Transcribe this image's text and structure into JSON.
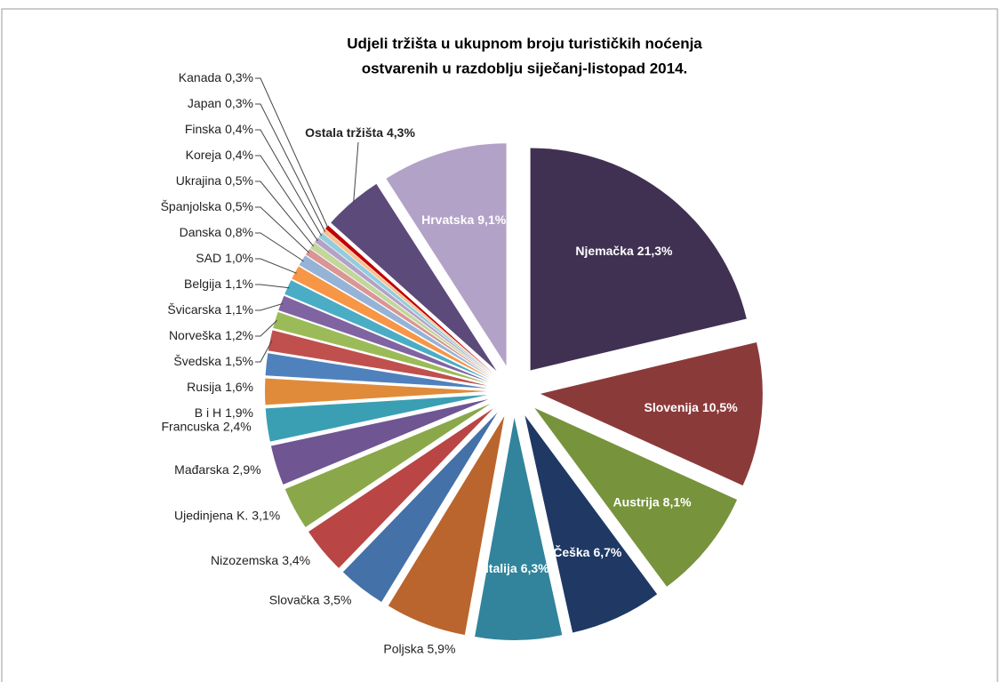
{
  "chart_data": {
    "type": "pie",
    "title": [
      "Udjeli tržišta u ukupnom broju turističkih noćenja",
      "ostvarenih u razdoblju siječanj-listopad 2014."
    ],
    "categories": [
      "Njemačka",
      "Slovenija",
      "Austrija",
      "Češka",
      "Italija",
      "Poljska",
      "Slovačka",
      "Nizozemska",
      "Ujedinjena K.",
      "Mađarska",
      "Francuska",
      "B i H",
      "Rusija",
      "Švedska",
      "Norveška",
      "Švicarska",
      "Belgija",
      "SAD",
      "Danska",
      "Španjolska",
      "Ukrajina",
      "Koreja",
      "Finska",
      "Japan",
      "Kanada",
      "Ostala tržišta",
      "Hrvatska"
    ],
    "values": [
      21.3,
      10.5,
      8.1,
      6.7,
      6.3,
      5.9,
      3.5,
      3.4,
      3.1,
      2.9,
      2.4,
      1.9,
      1.6,
      1.5,
      1.2,
      1.1,
      1.1,
      1.0,
      0.8,
      0.5,
      0.5,
      0.4,
      0.4,
      0.3,
      0.3,
      4.3,
      9.1
    ],
    "value_labels": [
      "21,3%",
      "10,5%",
      "8,1%",
      "6,7%",
      "6,3%",
      "5,9%",
      "3,5%",
      "3,4%",
      "3,1%",
      "2,9%",
      "2,4%",
      "1,9%",
      "1,6%",
      "1,5%",
      "1,2%",
      "1,1%",
      "1,1%",
      "1,0%",
      "0,8%",
      "0,5%",
      "0,5%",
      "0,4%",
      "0,4%",
      "0,3%",
      "0,3%",
      "4,3%",
      "9,1%"
    ],
    "colors": [
      "#403152",
      "#8b3a3a",
      "#77933c",
      "#1f3864",
      "#31849b",
      "#b9652d",
      "#4471a8",
      "#b94545",
      "#8aa84a",
      "#6f5592",
      "#3b9fb3",
      "#e08b3a",
      "#4f81bd",
      "#c0504d",
      "#9bbb59",
      "#8064a2",
      "#4bacc6",
      "#f79646",
      "#95b3d7",
      "#d99694",
      "#c3d69b",
      "#b3a2c7",
      "#93cddd",
      "#fac090",
      "#c00000",
      "#5b4a7a",
      "#b3a2c7"
    ]
  }
}
